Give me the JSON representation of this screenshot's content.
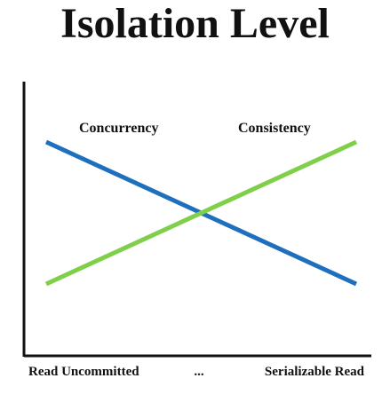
{
  "chart_data": {
    "type": "line",
    "title": "Isolation Level",
    "xlabel": "",
    "ylabel": "",
    "categories": [
      "Read Uncommitted",
      "...",
      "Serializable Read"
    ],
    "grid": false,
    "legend": "inline-labels",
    "xlim": [
      0,
      2
    ],
    "ylim": [
      0,
      1
    ],
    "series": [
      {
        "name": "Concurrency",
        "color": "#1f6fbf",
        "values": [
          0.9,
          0.5,
          0.1
        ]
      },
      {
        "name": "Consistency",
        "color": "#7fcf4a",
        "values": [
          0.1,
          0.5,
          0.9
        ]
      }
    ],
    "colors": {
      "axis": "#111111",
      "text": "#111111"
    }
  }
}
